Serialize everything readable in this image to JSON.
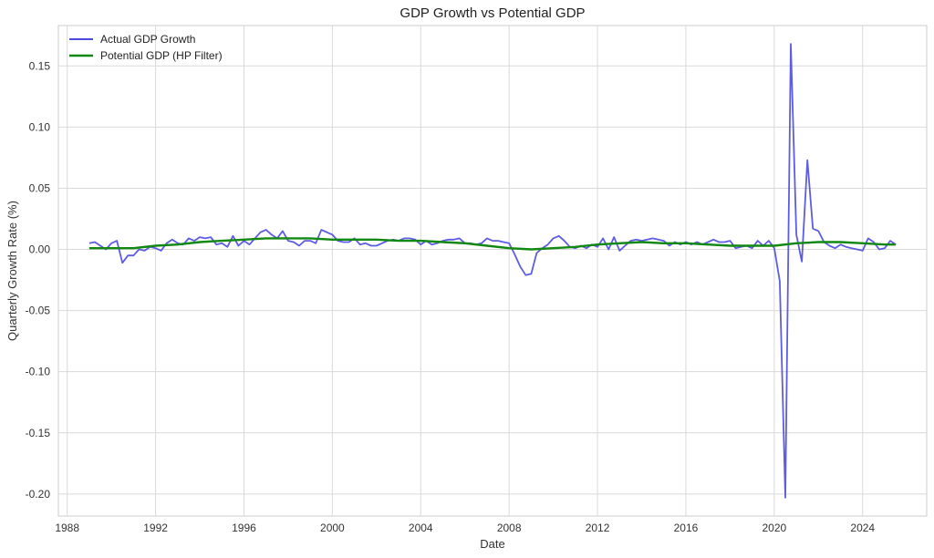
{
  "chart_data": {
    "type": "line",
    "title": "GDP Growth vs Potential GDP",
    "xlabel": "Date",
    "ylabel": "Quarterly Growth Rate (%)",
    "xlim": [
      1987.6,
      2026.9
    ],
    "ylim": [
      -0.218,
      0.183
    ],
    "x_ticks": [
      {
        "value": 1988,
        "label": "1988"
      },
      {
        "value": 1992,
        "label": "1992"
      },
      {
        "value": 1996,
        "label": "1996"
      },
      {
        "value": 2000,
        "label": "2000"
      },
      {
        "value": 2004,
        "label": "2004"
      },
      {
        "value": 2008,
        "label": "2008"
      },
      {
        "value": 2012,
        "label": "2012"
      },
      {
        "value": 2016,
        "label": "2016"
      },
      {
        "value": 2020,
        "label": "2020"
      },
      {
        "value": 2024,
        "label": "2024"
      }
    ],
    "y_ticks": [
      {
        "value": 0.15,
        "label": "0.15"
      },
      {
        "value": 0.1,
        "label": "0.10"
      },
      {
        "value": 0.05,
        "label": "0.05"
      },
      {
        "value": 0.0,
        "label": "0.00"
      },
      {
        "value": -0.05,
        "label": "-0.05"
      },
      {
        "value": -0.1,
        "label": "-0.10"
      },
      {
        "value": -0.15,
        "label": "-0.15"
      },
      {
        "value": -0.2,
        "label": "-0.20"
      }
    ],
    "grid": true,
    "legend": "top-left",
    "series": [
      {
        "name": "Actual GDP Growth",
        "color": "#4b4be0",
        "points": [
          [
            1989.0,
            0.005
          ],
          [
            1989.25,
            0.006
          ],
          [
            1989.5,
            0.003
          ],
          [
            1989.75,
            0.0
          ],
          [
            1990.0,
            0.005
          ],
          [
            1990.25,
            0.007
          ],
          [
            1990.5,
            -0.011
          ],
          [
            1990.75,
            -0.005
          ],
          [
            1991.0,
            -0.005
          ],
          [
            1991.25,
            0.0
          ],
          [
            1991.5,
            -0.001
          ],
          [
            1991.75,
            0.002
          ],
          [
            1992.0,
            0.001
          ],
          [
            1992.25,
            -0.001
          ],
          [
            1992.5,
            0.005
          ],
          [
            1992.75,
            0.008
          ],
          [
            1993.0,
            0.005
          ],
          [
            1993.25,
            0.004
          ],
          [
            1993.5,
            0.009
          ],
          [
            1993.75,
            0.007
          ],
          [
            1994.0,
            0.01
          ],
          [
            1994.25,
            0.009
          ],
          [
            1994.5,
            0.01
          ],
          [
            1994.75,
            0.004
          ],
          [
            1995.0,
            0.005
          ],
          [
            1995.25,
            0.002
          ],
          [
            1995.5,
            0.011
          ],
          [
            1995.75,
            0.003
          ],
          [
            1996.0,
            0.007
          ],
          [
            1996.25,
            0.004
          ],
          [
            1996.5,
            0.009
          ],
          [
            1996.75,
            0.014
          ],
          [
            1997.0,
            0.016
          ],
          [
            1997.25,
            0.012
          ],
          [
            1997.5,
            0.009
          ],
          [
            1997.75,
            0.015
          ],
          [
            1998.0,
            0.007
          ],
          [
            1998.25,
            0.006
          ],
          [
            1998.5,
            0.003
          ],
          [
            1998.75,
            0.007
          ],
          [
            1999.0,
            0.007
          ],
          [
            1999.25,
            0.005
          ],
          [
            1999.5,
            0.016
          ],
          [
            1999.75,
            0.014
          ],
          [
            2000.0,
            0.012
          ],
          [
            2000.25,
            0.007
          ],
          [
            2000.5,
            0.006
          ],
          [
            2000.75,
            0.006
          ],
          [
            2001.0,
            0.009
          ],
          [
            2001.25,
            0.004
          ],
          [
            2001.5,
            0.005
          ],
          [
            2001.75,
            0.003
          ],
          [
            2002.0,
            0.003
          ],
          [
            2002.25,
            0.005
          ],
          [
            2002.5,
            0.007
          ],
          [
            2002.75,
            0.008
          ],
          [
            2003.0,
            0.007
          ],
          [
            2003.25,
            0.009
          ],
          [
            2003.5,
            0.009
          ],
          [
            2003.75,
            0.008
          ],
          [
            2004.0,
            0.004
          ],
          [
            2004.25,
            0.007
          ],
          [
            2004.5,
            0.004
          ],
          [
            2004.75,
            0.005
          ],
          [
            2005.0,
            0.007
          ],
          [
            2005.25,
            0.008
          ],
          [
            2005.5,
            0.008
          ],
          [
            2005.75,
            0.009
          ],
          [
            2006.0,
            0.005
          ],
          [
            2006.25,
            0.005
          ],
          [
            2006.5,
            0.004
          ],
          [
            2006.75,
            0.005
          ],
          [
            2007.0,
            0.009
          ],
          [
            2007.25,
            0.007
          ],
          [
            2007.5,
            0.007
          ],
          [
            2007.75,
            0.006
          ],
          [
            2008.0,
            0.005
          ],
          [
            2008.25,
            -0.004
          ],
          [
            2008.5,
            -0.014
          ],
          [
            2008.75,
            -0.021
          ],
          [
            2009.0,
            -0.02
          ],
          [
            2009.25,
            -0.003
          ],
          [
            2009.5,
            0.001
          ],
          [
            2009.75,
            0.004
          ],
          [
            2010.0,
            0.009
          ],
          [
            2010.25,
            0.011
          ],
          [
            2010.5,
            0.007
          ],
          [
            2010.75,
            0.002
          ],
          [
            2011.0,
            0.001
          ],
          [
            2011.25,
            0.003
          ],
          [
            2011.5,
            0.001
          ],
          [
            2011.75,
            0.004
          ],
          [
            2012.0,
            0.002
          ],
          [
            2012.25,
            0.009
          ],
          [
            2012.5,
            0.0
          ],
          [
            2012.75,
            0.01
          ],
          [
            2013.0,
            -0.001
          ],
          [
            2013.25,
            0.003
          ],
          [
            2013.5,
            0.007
          ],
          [
            2013.75,
            0.008
          ],
          [
            2014.0,
            0.007
          ],
          [
            2014.25,
            0.008
          ],
          [
            2014.5,
            0.009
          ],
          [
            2014.75,
            0.008
          ],
          [
            2015.0,
            0.007
          ],
          [
            2015.25,
            0.003
          ],
          [
            2015.5,
            0.006
          ],
          [
            2015.75,
            0.004
          ],
          [
            2016.0,
            0.006
          ],
          [
            2016.25,
            0.004
          ],
          [
            2016.5,
            0.006
          ],
          [
            2016.75,
            0.004
          ],
          [
            2017.0,
            0.006
          ],
          [
            2017.25,
            0.008
          ],
          [
            2017.5,
            0.006
          ],
          [
            2017.75,
            0.006
          ],
          [
            2018.0,
            0.007
          ],
          [
            2018.25,
            0.001
          ],
          [
            2018.5,
            0.002
          ],
          [
            2018.75,
            0.003
          ],
          [
            2019.0,
            0.001
          ],
          [
            2019.25,
            0.007
          ],
          [
            2019.5,
            0.003
          ],
          [
            2019.75,
            0.007
          ],
          [
            2020.0,
            0.001
          ],
          [
            2020.25,
            -0.026
          ],
          [
            2020.5,
            -0.203
          ],
          [
            2020.75,
            0.168
          ],
          [
            2021.0,
            0.012
          ],
          [
            2021.25,
            -0.01
          ],
          [
            2021.5,
            0.073
          ],
          [
            2021.75,
            0.017
          ],
          [
            2022.0,
            0.015
          ],
          [
            2022.25,
            0.006
          ],
          [
            2022.5,
            0.003
          ],
          [
            2022.75,
            0.001
          ],
          [
            2023.0,
            0.004
          ],
          [
            2023.25,
            0.002
          ],
          [
            2023.5,
            0.001
          ],
          [
            2023.75,
            0.0
          ],
          [
            2024.0,
            -0.001
          ],
          [
            2024.25,
            0.009
          ],
          [
            2024.5,
            0.006
          ],
          [
            2024.75,
            0.0
          ],
          [
            2025.0,
            0.001
          ],
          [
            2025.25,
            0.007
          ],
          [
            2025.5,
            0.004
          ]
        ]
      },
      {
        "name": "Potential GDP (HP Filter)",
        "color": "#118811",
        "points": [
          [
            1989.0,
            0.001
          ],
          [
            1990.0,
            0.001
          ],
          [
            1991.0,
            0.001
          ],
          [
            1992.0,
            0.003
          ],
          [
            1993.0,
            0.004
          ],
          [
            1994.0,
            0.006
          ],
          [
            1995.0,
            0.007
          ],
          [
            1996.0,
            0.008
          ],
          [
            1997.0,
            0.009
          ],
          [
            1998.0,
            0.009
          ],
          [
            1999.0,
            0.009
          ],
          [
            2000.0,
            0.008
          ],
          [
            2001.0,
            0.008
          ],
          [
            2002.0,
            0.008
          ],
          [
            2003.0,
            0.007
          ],
          [
            2004.0,
            0.007
          ],
          [
            2005.0,
            0.006
          ],
          [
            2006.0,
            0.005
          ],
          [
            2007.0,
            0.003
          ],
          [
            2008.0,
            0.001
          ],
          [
            2009.0,
            0.0
          ],
          [
            2010.0,
            0.001
          ],
          [
            2011.0,
            0.002
          ],
          [
            2012.0,
            0.004
          ],
          [
            2013.0,
            0.005
          ],
          [
            2014.0,
            0.006
          ],
          [
            2015.0,
            0.005
          ],
          [
            2016.0,
            0.005
          ],
          [
            2017.0,
            0.004
          ],
          [
            2018.0,
            0.003
          ],
          [
            2019.0,
            0.003
          ],
          [
            2020.0,
            0.003
          ],
          [
            2021.0,
            0.005
          ],
          [
            2022.0,
            0.006
          ],
          [
            2023.0,
            0.006
          ],
          [
            2024.0,
            0.005
          ],
          [
            2025.0,
            0.004
          ],
          [
            2025.5,
            0.004
          ]
        ]
      }
    ]
  }
}
